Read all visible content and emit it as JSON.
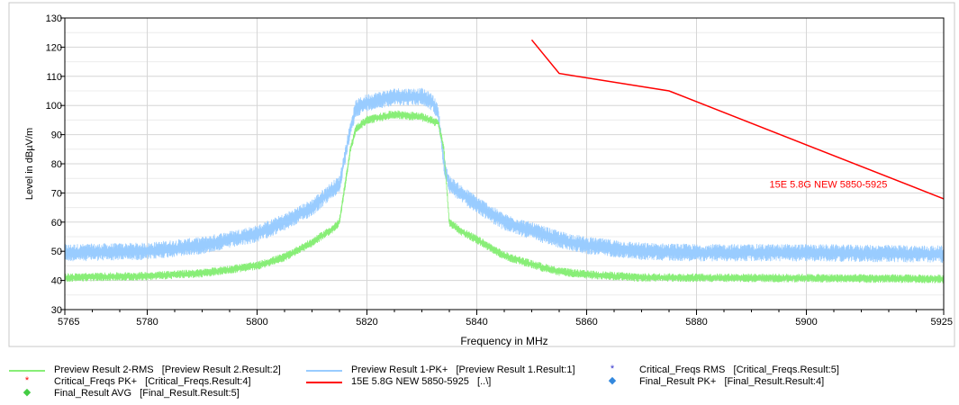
{
  "chart_data": {
    "type": "line",
    "title": "",
    "xlabel": "Frequency in MHz",
    "ylabel": "Level in dBµV/m",
    "xlim": [
      5765,
      5925
    ],
    "ylim": [
      30,
      130
    ],
    "x_ticks": [
      5765,
      5780,
      5800,
      5820,
      5840,
      5860,
      5880,
      5900,
      5925
    ],
    "y_ticks": [
      30,
      40,
      50,
      60,
      70,
      80,
      90,
      100,
      110,
      120,
      130
    ],
    "grid": true,
    "colors": {
      "pk": "#99ccff",
      "rms": "#88ee77",
      "limit": "#ff0000",
      "crit_rms": "#3333cc",
      "crit_pk": "#ff0000",
      "final_avg": "#44cc44",
      "final_pk": "#3388dd"
    },
    "series": [
      {
        "name": "Preview Result 1-PK+",
        "color": "#99ccff",
        "noise": 3,
        "points": [
          [
            5765,
            49.5
          ],
          [
            5780,
            50
          ],
          [
            5790,
            52
          ],
          [
            5800,
            56
          ],
          [
            5805,
            60
          ],
          [
            5810,
            65
          ],
          [
            5813,
            70
          ],
          [
            5815,
            73
          ],
          [
            5817,
            92
          ],
          [
            5818,
            99
          ],
          [
            5820,
            101
          ],
          [
            5825,
            103
          ],
          [
            5830,
            103
          ],
          [
            5832,
            101
          ],
          [
            5833,
            97
          ],
          [
            5834,
            80
          ],
          [
            5835,
            73
          ],
          [
            5837,
            70
          ],
          [
            5840,
            66
          ],
          [
            5845,
            60
          ],
          [
            5850,
            57
          ],
          [
            5855,
            54
          ],
          [
            5860,
            52
          ],
          [
            5870,
            50
          ],
          [
            5880,
            49.5
          ],
          [
            5900,
            49.5
          ],
          [
            5925,
            49
          ]
        ]
      },
      {
        "name": "Preview Result 2-RMS",
        "color": "#88ee77",
        "noise": 1.5,
        "points": [
          [
            5765,
            41
          ],
          [
            5780,
            41.5
          ],
          [
            5790,
            42.5
          ],
          [
            5800,
            45
          ],
          [
            5805,
            48
          ],
          [
            5810,
            53
          ],
          [
            5814,
            58
          ],
          [
            5815,
            60
          ],
          [
            5817,
            85
          ],
          [
            5818,
            92
          ],
          [
            5820,
            95
          ],
          [
            5825,
            97
          ],
          [
            5830,
            96
          ],
          [
            5833,
            94
          ],
          [
            5834,
            85
          ],
          [
            5835,
            60
          ],
          [
            5837,
            57
          ],
          [
            5840,
            54
          ],
          [
            5845,
            48.5
          ],
          [
            5850,
            45.5
          ],
          [
            5855,
            43
          ],
          [
            5860,
            42
          ],
          [
            5870,
            41
          ],
          [
            5900,
            40.8
          ],
          [
            5925,
            40.5
          ]
        ]
      },
      {
        "name": "15E 5.8G NEW 5850-5925",
        "color": "#ff0000",
        "noise": 0,
        "points": [
          [
            5850,
            122.5
          ],
          [
            5855,
            111
          ],
          [
            5875,
            105
          ],
          [
            5925,
            68
          ]
        ]
      }
    ],
    "annotations": [
      {
        "text": "15E 5.8G NEW 5850-5925",
        "x": 5904,
        "y": 73,
        "color": "#ff0000"
      }
    ],
    "legend": {
      "placement": "bottom",
      "items": [
        {
          "symbol": "line",
          "color": "#88ee77",
          "label": "Preview Result 2-RMS   [Preview Result 2.Result:2]"
        },
        {
          "symbol": "line",
          "color": "#99ccff",
          "label": "Preview Result 1-PK+   [Preview Result 1.Result:1]"
        },
        {
          "symbol": "*",
          "color": "#3333cc",
          "label": "Critical_Freqs RMS   [Critical_Freqs.Result:5]"
        },
        {
          "symbol": "*",
          "color": "#ff0000",
          "label": "Critical_Freqs PK+   [Critical_Freqs.Result:4]"
        },
        {
          "symbol": "line",
          "color": "#ff0000",
          "label": "15E 5.8G NEW 5850-5925   [..\\]"
        },
        {
          "symbol": "◆",
          "color": "#3388dd",
          "label": "Final_Result PK+   [Final_Result.Result:4]"
        },
        {
          "symbol": "◆",
          "color": "#44cc44",
          "label": "Final_Result AVG   [Final_Result.Result:5]"
        }
      ]
    }
  }
}
